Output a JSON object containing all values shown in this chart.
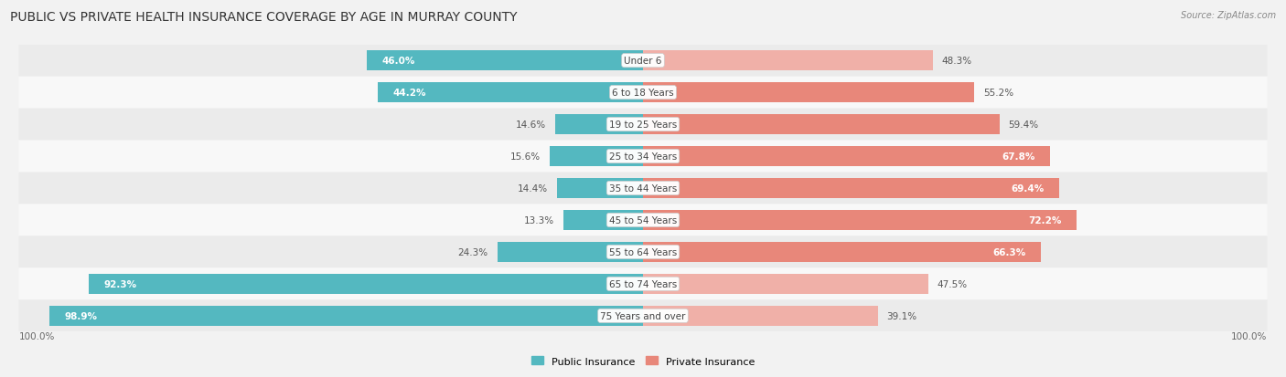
{
  "title": "Public vs Private Health Insurance Coverage by Age in Murray County",
  "source": "Source: ZipAtlas.com",
  "categories": [
    "Under 6",
    "6 to 18 Years",
    "19 to 25 Years",
    "25 to 34 Years",
    "35 to 44 Years",
    "45 to 54 Years",
    "55 to 64 Years",
    "65 to 74 Years",
    "75 Years and over"
  ],
  "public_values": [
    46.0,
    44.2,
    14.6,
    15.6,
    14.4,
    13.3,
    24.3,
    92.3,
    98.9
  ],
  "private_values": [
    48.3,
    55.2,
    59.4,
    67.8,
    69.4,
    72.2,
    66.3,
    47.5,
    39.1
  ],
  "public_color": "#54b8c0",
  "private_color": "#e8877a",
  "private_color_light": "#f0b0a8",
  "bg_color": "#f2f2f2",
  "row_bg_even": "#ebebeb",
  "row_bg_odd": "#f8f8f8",
  "max_value": 100.0,
  "title_fontsize": 10,
  "label_fontsize": 7.5,
  "value_fontsize": 7.5,
  "legend_fontsize": 8,
  "source_fontsize": 7
}
